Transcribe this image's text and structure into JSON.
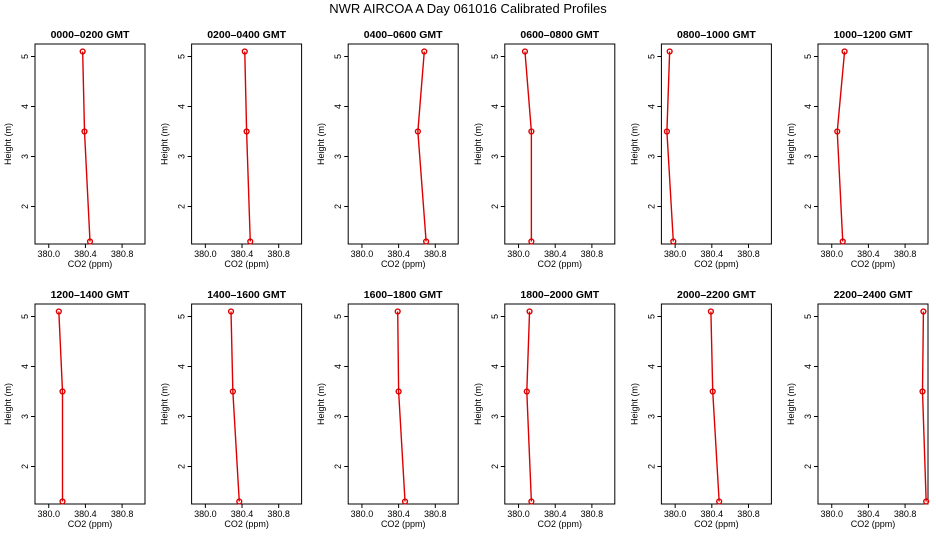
{
  "title": "NWR AIRCOA A  Day 061016  Calibrated Profiles",
  "colors": {
    "series": "#dd0000",
    "axis": "#000000",
    "background": "#ffffff"
  },
  "chart_data": {
    "type": "line",
    "xlabel": "CO2 (ppm)",
    "ylabel": "Height (m)",
    "xlim": [
      379.85,
      381.05
    ],
    "ylim": [
      1.25,
      5.25
    ],
    "xticks": [
      380.0,
      380.4,
      380.8
    ],
    "xtick_labels": [
      "380.0",
      "380.4",
      "380.8"
    ],
    "yticks": [
      2,
      3,
      4,
      5
    ],
    "ytick_labels": [
      "2",
      "3",
      "4",
      "5"
    ],
    "grid": false,
    "marker": "open-circle",
    "panels": [
      {
        "title": "0000–0200 GMT",
        "points": [
          {
            "co2": 380.37,
            "height": 5.1
          },
          {
            "co2": 380.39,
            "height": 3.5
          },
          {
            "co2": 380.45,
            "height": 1.3
          }
        ]
      },
      {
        "title": "0200–0400 GMT",
        "points": [
          {
            "co2": 380.43,
            "height": 5.1
          },
          {
            "co2": 380.45,
            "height": 3.5
          },
          {
            "co2": 380.49,
            "height": 1.3
          }
        ]
      },
      {
        "title": "0400–0600 GMT",
        "points": [
          {
            "co2": 380.68,
            "height": 5.1
          },
          {
            "co2": 380.61,
            "height": 3.5
          },
          {
            "co2": 380.7,
            "height": 1.3
          }
        ]
      },
      {
        "title": "0600–0800 GMT",
        "points": [
          {
            "co2": 380.07,
            "height": 5.1
          },
          {
            "co2": 380.14,
            "height": 3.5
          },
          {
            "co2": 380.14,
            "height": 1.3
          }
        ]
      },
      {
        "title": "0800–1000 GMT",
        "points": [
          {
            "co2": 379.94,
            "height": 5.1
          },
          {
            "co2": 379.91,
            "height": 3.5
          },
          {
            "co2": 379.98,
            "height": 1.3
          }
        ]
      },
      {
        "title": "1000–1200 GMT",
        "points": [
          {
            "co2": 380.14,
            "height": 5.1
          },
          {
            "co2": 380.06,
            "height": 3.5
          },
          {
            "co2": 380.12,
            "height": 1.3
          }
        ]
      },
      {
        "title": "1200–1400 GMT",
        "points": [
          {
            "co2": 380.11,
            "height": 5.1
          },
          {
            "co2": 380.15,
            "height": 3.5
          },
          {
            "co2": 380.15,
            "height": 1.3
          }
        ]
      },
      {
        "title": "1400–1600 GMT",
        "points": [
          {
            "co2": 380.28,
            "height": 5.1
          },
          {
            "co2": 380.3,
            "height": 3.5
          },
          {
            "co2": 380.37,
            "height": 1.3
          }
        ]
      },
      {
        "title": "1600–1800 GMT",
        "points": [
          {
            "co2": 380.39,
            "height": 5.1
          },
          {
            "co2": 380.4,
            "height": 3.5
          },
          {
            "co2": 380.47,
            "height": 1.3
          }
        ]
      },
      {
        "title": "1800–2000 GMT",
        "points": [
          {
            "co2": 380.12,
            "height": 5.1
          },
          {
            "co2": 380.09,
            "height": 3.5
          },
          {
            "co2": 380.14,
            "height": 1.3
          }
        ]
      },
      {
        "title": "2000–2200 GMT",
        "points": [
          {
            "co2": 380.39,
            "height": 5.1
          },
          {
            "co2": 380.41,
            "height": 3.5
          },
          {
            "co2": 380.48,
            "height": 1.3
          }
        ]
      },
      {
        "title": "2200–2400 GMT",
        "points": [
          {
            "co2": 381.0,
            "height": 5.1
          },
          {
            "co2": 380.99,
            "height": 3.5
          },
          {
            "co2": 381.03,
            "height": 1.3
          }
        ]
      }
    ]
  }
}
